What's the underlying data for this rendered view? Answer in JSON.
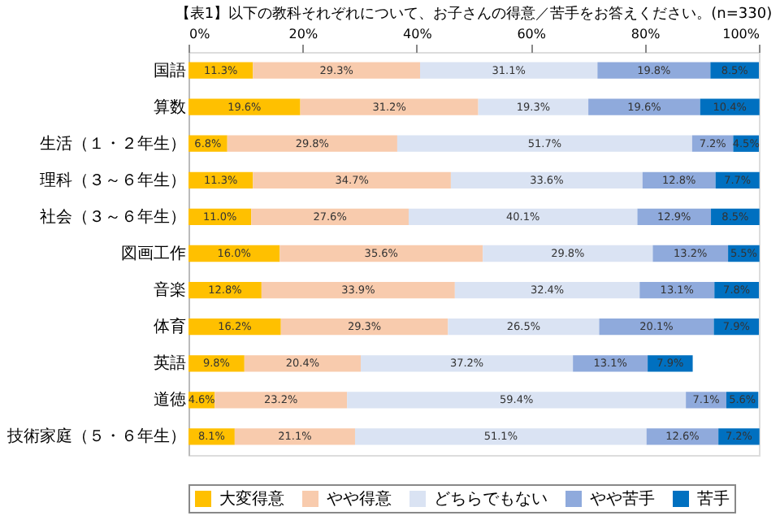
{
  "chart_data": {
    "type": "bar",
    "orientation": "horizontal",
    "stacked": true,
    "legend": "bottom",
    "grid": false,
    "title": "【表1】以下の教科それぞれについて、お子さんの得意／苦手をお答えください。(n=330)",
    "categories": [
      "国語",
      "算数",
      "生活（１・２年生）",
      "理科（３～６年生）",
      "社会（３～６年生）",
      "図画工作",
      "音楽",
      "体育",
      "英語",
      "道徳",
      "技術家庭（５・６年生）"
    ],
    "xlim": [
      0,
      100
    ],
    "xticks": [
      {
        "value": 0,
        "label": "0%"
      },
      {
        "value": 20,
        "label": "20%"
      },
      {
        "value": 40,
        "label": "40%"
      },
      {
        "value": 60,
        "label": "60%"
      },
      {
        "value": 80,
        "label": "80%"
      },
      {
        "value": 100,
        "label": "100%"
      }
    ],
    "series": [
      {
        "name": "大変得意",
        "color": "#ffc000",
        "values": [
          11.3,
          19.6,
          6.8,
          11.3,
          11.0,
          16.0,
          12.8,
          16.2,
          9.8,
          4.6,
          8.1
        ],
        "value_labels": [
          "11.3%",
          "19.6%",
          "6.8%",
          "11.3%",
          "11.0%",
          "16.0%",
          "12.8%",
          "16.2%",
          "9.8%",
          "4.6%",
          "8.1%"
        ]
      },
      {
        "name": "やや得意",
        "color": "#f8cbad",
        "values": [
          29.3,
          31.2,
          29.8,
          34.7,
          27.6,
          35.6,
          33.9,
          29.3,
          20.4,
          23.2,
          21.1
        ],
        "value_labels": [
          "29.3%",
          "31.2%",
          "29.8%",
          "34.7%",
          "27.6%",
          "35.6%",
          "33.9%",
          "29.3%",
          "20.4%",
          "23.2%",
          "21.1%"
        ]
      },
      {
        "name": "どちらでもない",
        "color": "#dae3f3",
        "values": [
          31.1,
          19.3,
          51.7,
          33.6,
          40.1,
          29.8,
          32.4,
          26.5,
          37.2,
          59.4,
          51.1
        ],
        "value_labels": [
          "31.1%",
          "19.3%",
          "51.7%",
          "33.6%",
          "40.1%",
          "29.8%",
          "32.4%",
          "26.5%",
          "37.2%",
          "59.4%",
          "51.1%"
        ]
      },
      {
        "name": "やや苦手",
        "color": "#8faadc",
        "values": [
          19.8,
          19.6,
          7.2,
          12.8,
          12.9,
          13.2,
          13.1,
          20.1,
          13.1,
          7.1,
          12.6
        ],
        "value_labels": [
          "19.8%",
          "19.6%",
          "7.2%",
          "12.8%",
          "12.9%",
          "13.2%",
          "13.1%",
          "20.1%",
          "13.1%",
          "7.1%",
          "12.6%"
        ]
      },
      {
        "name": "苦手",
        "color": "#0070c0",
        "values": [
          8.5,
          10.4,
          4.5,
          7.7,
          8.5,
          5.5,
          7.8,
          7.9,
          7.9,
          5.6,
          7.2
        ],
        "value_labels": [
          "8.5%",
          "10.4%",
          "4.5%",
          "7.7%",
          "8.5%",
          "5.5%",
          "7.8%",
          "7.9%",
          "7.9%",
          "5.6%",
          "7.2%"
        ]
      }
    ]
  }
}
